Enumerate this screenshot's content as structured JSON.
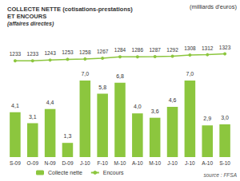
{
  "chart_data": {
    "type": "bar",
    "title": "COLLECTE NETTE (cotisations-prestations)\nET ENCOURS",
    "subtitle": "(affaires directes)",
    "annotations": [
      "(milliards d'euros)",
      "source : FFSA"
    ],
    "categories": [
      "S-09",
      "O-09",
      "N-09",
      "D-09",
      "J-10",
      "F-10",
      "M-10",
      "A-10",
      "M-10",
      "J-10",
      "J-10",
      "A-10",
      "S-10"
    ],
    "series": [
      {
        "name": "Collecte nette",
        "type": "bar",
        "color": "#8cc63e",
        "values": [
          4.1,
          3.1,
          4.4,
          1.3,
          7.0,
          5.8,
          6.8,
          4.0,
          3.6,
          4.6,
          7.0,
          2.9,
          3.0
        ],
        "value_labels": [
          "4,1",
          "3,1",
          "4,4",
          "1,3",
          "7,0",
          "5,8",
          "6,8",
          "4,0",
          "3,6",
          "4,6",
          "7,0",
          "2,9",
          "3,0"
        ]
      },
      {
        "name": "Encours",
        "type": "line",
        "axis": "y2",
        "color": "#8cc63e",
        "marker": "circle",
        "values": [
          1233,
          1233,
          1243,
          1253,
          1258,
          1267,
          1284,
          1286,
          1287,
          1292,
          1308,
          1312,
          1323
        ]
      }
    ],
    "ylim": [
      0,
      10
    ],
    "yticks": [
      0,
      10
    ],
    "y2lim": [
      0,
      1400
    ],
    "y2ticks": [
      0,
      1400
    ],
    "data_labels": true,
    "tick_labels": "x",
    "legend": "bottom",
    "grid": false
  }
}
